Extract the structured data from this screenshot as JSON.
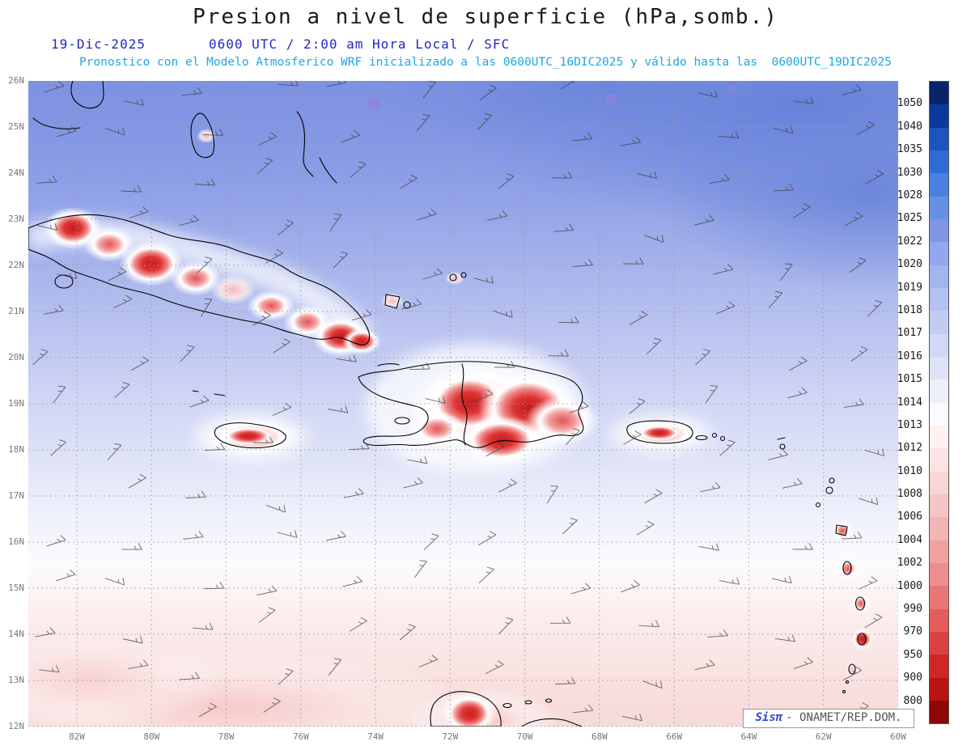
{
  "header": {
    "title": "Presion a nivel de superficie (hPa,somb.)",
    "date_label": "19-Dic-2025",
    "time_label": "0600 UTC / 2:00 am Hora Local / SFC",
    "forecast_line": "Pronostico con el Modelo Atmosferico WRF inicializado a las 0600UTC_16DIC2025 y válido hasta las  0600UTC_19DIC2025"
  },
  "map": {
    "lat_labels": [
      "26N",
      "25N",
      "24N",
      "23N",
      "22N",
      "21N",
      "20N",
      "19N",
      "18N",
      "17N",
      "16N",
      "15N",
      "14N",
      "13N",
      "12N"
    ],
    "lon_labels": [
      "82W",
      "80W",
      "78W",
      "76W",
      "74W",
      "72W",
      "70W",
      "68W",
      "66W",
      "64W",
      "62W",
      "60W"
    ]
  },
  "colorbar": {
    "unit": "hPa",
    "labels": [
      "1050",
      "1040",
      "1035",
      "1030",
      "1028",
      "1025",
      "1022",
      "1020",
      "1019",
      "1018",
      "1017",
      "1016",
      "1015",
      "1014",
      "1013",
      "1012",
      "1010",
      "1008",
      "1006",
      "1004",
      "1002",
      "1000",
      "990",
      "970",
      "950",
      "900",
      "800"
    ],
    "colors": [
      "#08246b",
      "#0a3a9e",
      "#1c55c0",
      "#2f6bd4",
      "#4a80e0",
      "#6590e6",
      "#8095e3",
      "#93a7ec",
      "#a4b4ee",
      "#b3c0f0",
      "#c2ccf3",
      "#d1d8f5",
      "#dfe3f8",
      "#edeffa",
      "#fafbfe",
      "#fdf1f1",
      "#fbe4e4",
      "#f9d6d6",
      "#f6c6c6",
      "#f3b4b4",
      "#f0a2a2",
      "#ec8e8e",
      "#e87676",
      "#e25c5c",
      "#da4141",
      "#cf2727",
      "#b81414",
      "#8f0606"
    ]
  },
  "theme": {
    "header_blue": "#2525c8",
    "header_cyan": "#1ea7e4",
    "watermark_blue": "#3347d1"
  },
  "watermark": {
    "brand": "Sisπ",
    "text": "- ONAMET/REP.DOM."
  }
}
